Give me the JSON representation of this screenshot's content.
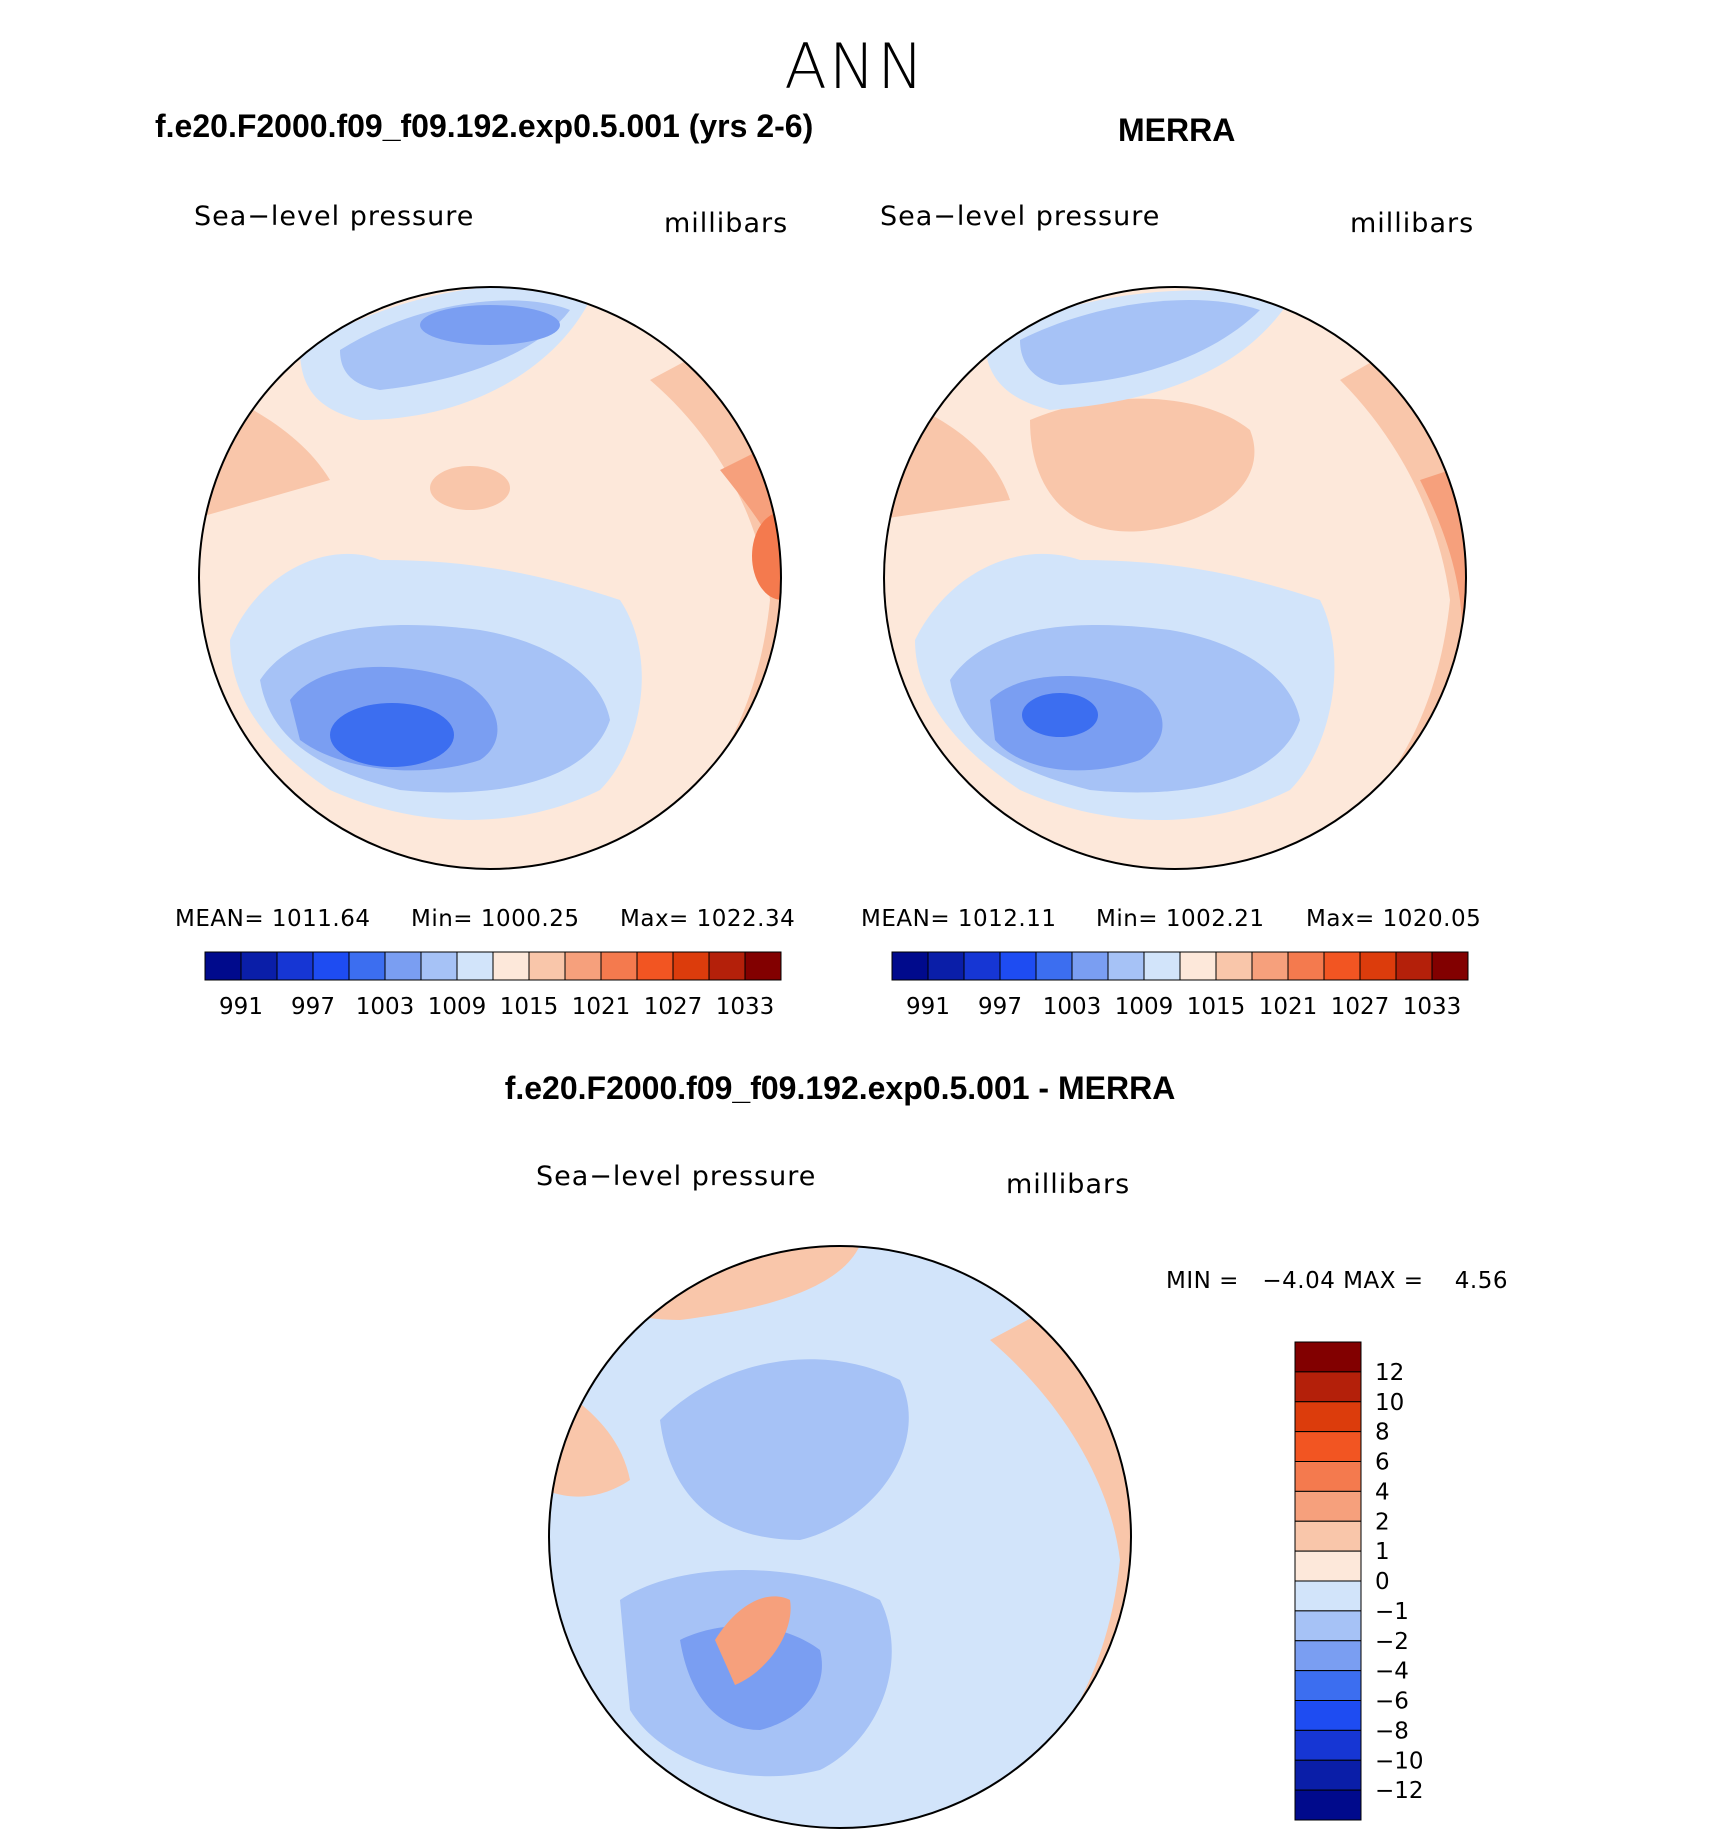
{
  "page": {
    "title": "ANN"
  },
  "panels": {
    "model": {
      "title": "f.e20.F2000.f09_f09.192.exp0.5.001 (yrs 2-6)",
      "left_label": "Sea−level pressure",
      "right_label": "millibars",
      "mean_label": "MEAN= 1011.64",
      "min_label": "Min= 1000.25",
      "max_label": "Max= 1022.34"
    },
    "obs": {
      "title": "MERRA",
      "left_label": "Sea−level pressure",
      "right_label": "millibars",
      "mean_label": "MEAN= 1012.11",
      "min_label": "Min= 1002.21",
      "max_label": "Max= 1020.05"
    },
    "diff": {
      "title": "f.e20.F2000.f09_f09.192.exp0.5.001 - MERRA",
      "left_label": "Sea−level pressure",
      "right_label": "millibars",
      "minmax_label": "MIN =   −4.04 MAX =    4.56"
    }
  },
  "colorbar_abs": {
    "colors": [
      "#000a8c",
      "#0a1ea8",
      "#1636d4",
      "#1e4cf2",
      "#3c6ef0",
      "#7a9ef2",
      "#a6c2f6",
      "#d2e4fa",
      "#fde8da",
      "#f9c6aa",
      "#f6a07c",
      "#f47a4e",
      "#f25522",
      "#dc3c0c",
      "#b4200a",
      "#820000"
    ],
    "ticks": [
      "991",
      "997",
      "1003",
      "1009",
      "1015",
      "1021",
      "1027",
      "1033"
    ]
  },
  "colorbar_diff": {
    "colors": [
      "#820000",
      "#b4200a",
      "#dc3c0c",
      "#f25522",
      "#f47a4e",
      "#f6a07c",
      "#f9c6aa",
      "#fde8da",
      "#d2e4fa",
      "#a6c2f6",
      "#7a9ef2",
      "#3c6ef0",
      "#1e4cf2",
      "#1636d4",
      "#0a1ea8",
      "#000a8c"
    ],
    "ticks": [
      "12",
      "10",
      "8",
      "6",
      "4",
      "2",
      "1",
      "0",
      "−1",
      "−2",
      "−4",
      "−6",
      "−8",
      "−10",
      "−12"
    ]
  },
  "chart_data": [
    {
      "type": "heatmap",
      "projection": "north-polar-stereographic",
      "title": "f.e20.F2000.f09_f09.192.exp0.5.001 (yrs 2-6)",
      "variable": "Sea-level pressure",
      "units": "millibars",
      "mean": 1011.64,
      "min": 1000.25,
      "max": 1022.34,
      "contour_levels": [
        991,
        994,
        997,
        1000,
        1003,
        1006,
        1009,
        1012,
        1015,
        1018,
        1021,
        1024,
        1027,
        1030,
        1033
      ]
    },
    {
      "type": "heatmap",
      "projection": "north-polar-stereographic",
      "title": "MERRA",
      "variable": "Sea-level pressure",
      "units": "millibars",
      "mean": 1012.11,
      "min": 1002.21,
      "max": 1020.05,
      "contour_levels": [
        991,
        994,
        997,
        1000,
        1003,
        1006,
        1009,
        1012,
        1015,
        1018,
        1021,
        1024,
        1027,
        1030,
        1033
      ]
    },
    {
      "type": "heatmap",
      "projection": "north-polar-stereographic",
      "title": "f.e20.F2000.f09_f09.192.exp0.5.001 - MERRA",
      "variable": "Sea-level pressure",
      "units": "millibars",
      "min": -4.04,
      "max": 4.56,
      "contour_levels": [
        -12,
        -10,
        -8,
        -6,
        -4,
        -2,
        -1,
        0,
        1,
        2,
        4,
        6,
        8,
        10,
        12
      ]
    }
  ]
}
